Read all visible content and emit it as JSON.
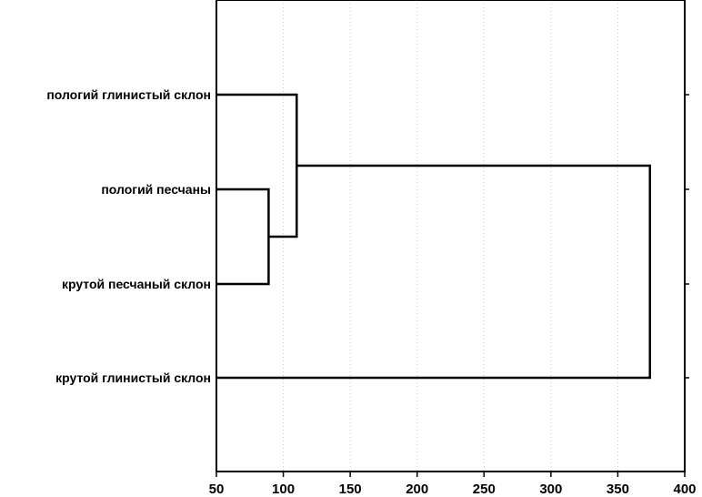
{
  "chart_data": {
    "type": "dendrogram",
    "orientation": "horizontal",
    "title": "",
    "xlabel": "",
    "ylabel": "",
    "xlim": [
      50,
      400
    ],
    "x_ticks": [
      50,
      100,
      150,
      200,
      250,
      300,
      350,
      400
    ],
    "grid": "vertical dotted",
    "leaves": [
      "пологий глинистый склон",
      "пологий песчаны",
      "крутой песчаный склон",
      "крутой глинистый склон"
    ],
    "merges": [
      {
        "left": "пологий песчаны",
        "right": "крутой песчаный склон",
        "distance": 89
      },
      {
        "left": "пологий глинистый склон",
        "right": "cluster(пологий песчаны, крутой песчаный склон)",
        "distance": 110
      },
      {
        "left": "cluster(пологий глинистый склон, пологий песчаны, крутой песчаный склон)",
        "right": "крутой глинистый склон",
        "distance": 374
      }
    ]
  }
}
